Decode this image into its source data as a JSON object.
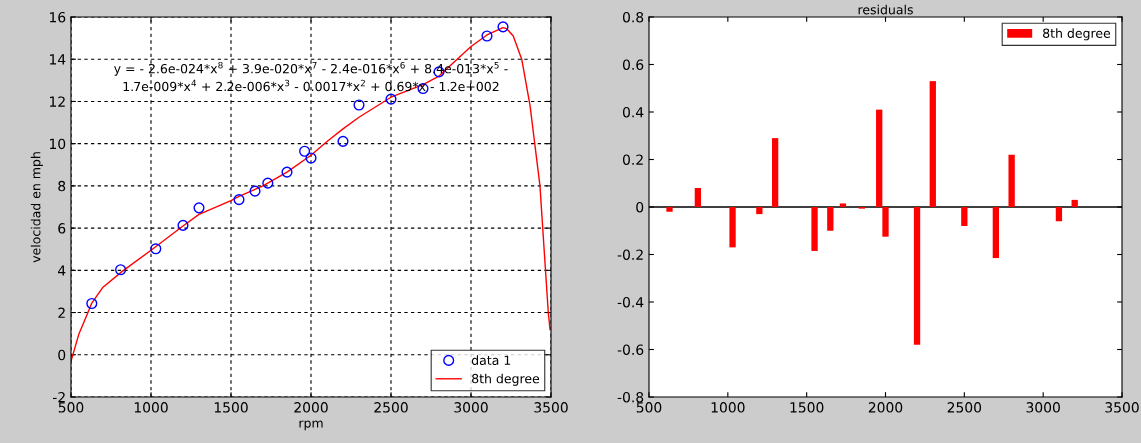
{
  "chart_data": [
    {
      "type": "scatter",
      "xlabel": "rpm",
      "ylabel": "velocidad en mph",
      "xlim": [
        500,
        3500
      ],
      "xticks": [
        500,
        1000,
        1500,
        2000,
        2500,
        3000,
        3500
      ],
      "ylim": [
        -2,
        16
      ],
      "yticks": [
        -2,
        0,
        2,
        4,
        6,
        8,
        10,
        12,
        14,
        16
      ],
      "grid": true,
      "legend": "bottom right",
      "annotations": [
        "y = - 2.6e-024*x$^{8}$ + 3.9e-020*x$^{7}$ - 2.4e-016*x$^{6}$ + 8.4e-013*x$^{5}$ -\n1.7e-009*x$^{4}$ + 2.2e-006*x$^{3}$ - 0.0017*x$^{2}$ + 0.69*x - 1.2e+002"
      ],
      "series": [
        {
          "name": "data 1",
          "color": "#0000ff",
          "marker": "circle",
          "x": [
            630,
            810,
            1030,
            1200,
            1300,
            1550,
            1650,
            1730,
            1850,
            1960,
            2000,
            2200,
            2300,
            2500,
            2700,
            2800,
            3100,
            3200
          ],
          "values": [
            2.43,
            4.03,
            5.02,
            6.13,
            6.96,
            7.35,
            7.75,
            8.13,
            8.65,
            9.64,
            9.32,
            10.11,
            11.83,
            12.11,
            12.61,
            13.4,
            15.1,
            15.53
          ]
        },
        {
          "name": "8th degree",
          "type": "line",
          "color": "#ff0000",
          "marker": "none",
          "line_style": "solid",
          "x": [
            500,
            550,
            600,
            630,
            700,
            820,
            1000,
            1200,
            1300,
            1500,
            1550,
            1700,
            1850,
            2000,
            2100,
            2200,
            2300,
            2500,
            2700,
            2800,
            2900,
            3000,
            3100,
            3200,
            3223,
            3264,
            3317,
            3369,
            3431,
            3483,
            3494
          ],
          "values": [
            -0.3,
            1.0,
            1.9,
            2.45,
            3.2,
            3.95,
            4.95,
            6.1,
            6.65,
            7.3,
            7.5,
            8.0,
            8.65,
            9.45,
            10.1,
            10.7,
            11.25,
            12.2,
            12.8,
            13.2,
            13.9,
            14.6,
            15.15,
            15.5,
            15.45,
            15.1,
            14.0,
            11.8,
            8.0,
            2.0,
            1.2
          ]
        }
      ]
    },
    {
      "type": "bar",
      "title": "residuals",
      "xlim": [
        500,
        3500
      ],
      "xticks": [
        500,
        1000,
        1500,
        2000,
        2500,
        3000,
        3500
      ],
      "ylim": [
        -0.8,
        0.8
      ],
      "yticks": [
        -0.8,
        -0.6,
        -0.4,
        -0.2,
        0,
        0.2,
        0.4,
        0.6,
        0.8
      ],
      "grid": false,
      "legend": "top right",
      "ref_lines": [
        {
          "axis": "y",
          "value": 0,
          "color": "#000000"
        }
      ],
      "series": [
        {
          "name": "8th degree",
          "color": "#ff0000",
          "x": [
            630,
            810,
            1030,
            1200,
            1300,
            1550,
            1650,
            1730,
            1850,
            1960,
            2000,
            2200,
            2300,
            2500,
            2700,
            2800,
            3100,
            3200
          ],
          "values": [
            -0.02,
            0.08,
            -0.17,
            -0.03,
            0.29,
            -0.185,
            -0.1,
            0.015,
            -0.007,
            0.41,
            -0.125,
            -0.58,
            0.53,
            -0.08,
            -0.215,
            0.22,
            -0.06,
            0.03
          ]
        }
      ]
    }
  ]
}
